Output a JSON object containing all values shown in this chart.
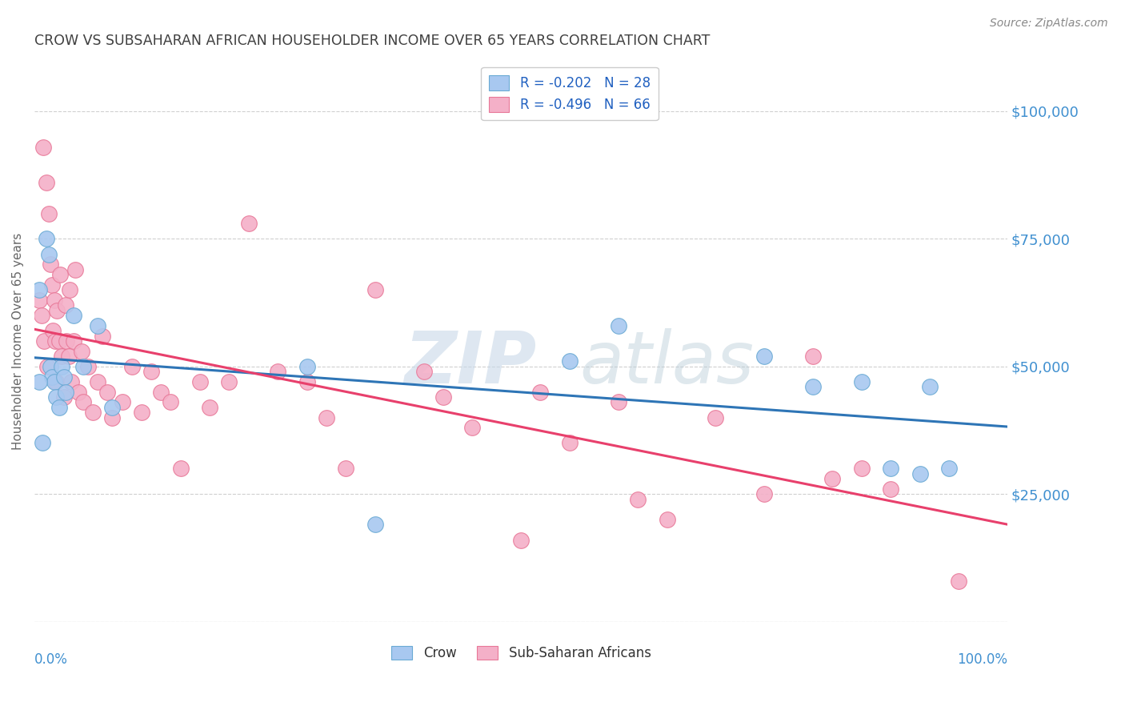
{
  "title": "CROW VS SUBSAHARAN AFRICAN HOUSEHOLDER INCOME OVER 65 YEARS CORRELATION CHART",
  "source": "Source: ZipAtlas.com",
  "ylabel": "Householder Income Over 65 years",
  "ylim": [
    0,
    110000
  ],
  "xlim": [
    0.0,
    1.0
  ],
  "yticks": [
    0,
    25000,
    50000,
    75000,
    100000
  ],
  "ytick_labels": [
    "",
    "$25,000",
    "$50,000",
    "$75,000",
    "$100,000"
  ],
  "background_color": "#ffffff",
  "crow_color": "#a8c8f0",
  "crow_edge_color": "#6aaad4",
  "ssa_color": "#f4b0c8",
  "ssa_edge_color": "#e87898",
  "crow_line_color": "#2e75b6",
  "ssa_line_color": "#e8406c",
  "ssa_dashed_color": "#f0b0c4",
  "legend_R_color": "#2060c0",
  "legend_N_color": "#2060c0",
  "legend_crow_R": "-0.202",
  "legend_crow_N": "28",
  "legend_ssa_R": "-0.496",
  "legend_ssa_N": "66",
  "grid_color": "#d0d0d0",
  "title_color": "#404040",
  "right_tick_color": "#4090d0",
  "crow_x": [
    0.005,
    0.012,
    0.015,
    0.016,
    0.018,
    0.02,
    0.022,
    0.025,
    0.028,
    0.03,
    0.032,
    0.04,
    0.05,
    0.065,
    0.08,
    0.28,
    0.35,
    0.55,
    0.6,
    0.75,
    0.8,
    0.85,
    0.88,
    0.91,
    0.92,
    0.94,
    0.005,
    0.008
  ],
  "crow_y": [
    65000,
    75000,
    72000,
    50000,
    48000,
    47000,
    44000,
    42000,
    50000,
    48000,
    45000,
    60000,
    50000,
    58000,
    42000,
    50000,
    19000,
    51000,
    58000,
    52000,
    46000,
    47000,
    30000,
    29000,
    46000,
    30000,
    47000,
    35000
  ],
  "ssa_x": [
    0.005,
    0.007,
    0.009,
    0.01,
    0.012,
    0.013,
    0.015,
    0.016,
    0.018,
    0.019,
    0.02,
    0.021,
    0.022,
    0.023,
    0.025,
    0.026,
    0.028,
    0.03,
    0.032,
    0.033,
    0.035,
    0.036,
    0.038,
    0.04,
    0.042,
    0.045,
    0.048,
    0.05,
    0.055,
    0.06,
    0.065,
    0.07,
    0.075,
    0.08,
    0.09,
    0.1,
    0.11,
    0.12,
    0.13,
    0.14,
    0.15,
    0.17,
    0.18,
    0.2,
    0.22,
    0.25,
    0.28,
    0.3,
    0.32,
    0.35,
    0.4,
    0.42,
    0.45,
    0.5,
    0.52,
    0.55,
    0.6,
    0.62,
    0.65,
    0.7,
    0.75,
    0.8,
    0.82,
    0.85,
    0.88,
    0.95
  ],
  "ssa_y": [
    63000,
    60000,
    93000,
    55000,
    86000,
    50000,
    80000,
    70000,
    66000,
    57000,
    63000,
    55000,
    47000,
    61000,
    55000,
    68000,
    52000,
    44000,
    62000,
    55000,
    52000,
    65000,
    47000,
    55000,
    69000,
    45000,
    53000,
    43000,
    50000,
    41000,
    47000,
    56000,
    45000,
    40000,
    43000,
    50000,
    41000,
    49000,
    45000,
    43000,
    30000,
    47000,
    42000,
    47000,
    78000,
    49000,
    47000,
    40000,
    30000,
    65000,
    49000,
    44000,
    38000,
    16000,
    45000,
    35000,
    43000,
    24000,
    20000,
    40000,
    25000,
    52000,
    28000,
    30000,
    26000,
    8000
  ]
}
